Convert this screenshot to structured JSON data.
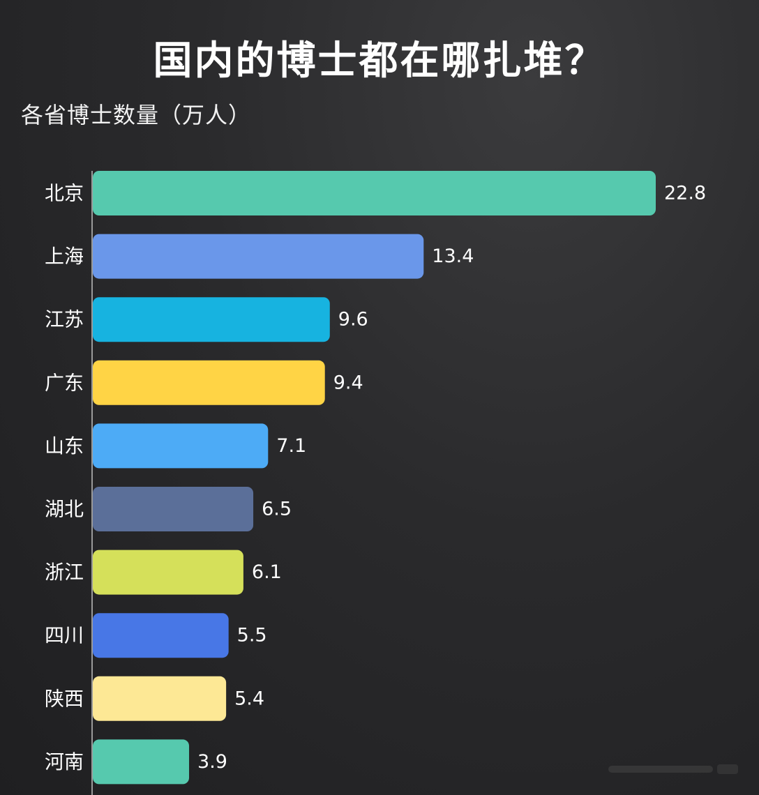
{
  "title": "国内的博士都在哪扎堆？",
  "subtitle": "各省博士数量（万人）",
  "chart_data": {
    "type": "bar",
    "orientation": "horizontal",
    "title": "国内的博士都在哪扎堆？",
    "subtitle": "各省博士数量（万人）",
    "categories": [
      "北京",
      "上海",
      "江苏",
      "广东",
      "山东",
      "湖北",
      "浙江",
      "四川",
      "陕西",
      "河南"
    ],
    "values": [
      22.8,
      13.4,
      9.6,
      9.4,
      7.1,
      6.5,
      6.1,
      5.5,
      5.4,
      3.9
    ],
    "value_labels": [
      "22.8",
      "13.4",
      "9.6",
      "9.4",
      "7.1",
      "6.5",
      "6.1",
      "5.5",
      "5.4",
      "3.9"
    ],
    "colors": [
      "#56c9ae",
      "#6a97ea",
      "#17b3e0",
      "#ffd445",
      "#4dabf6",
      "#5b6f99",
      "#d5e05a",
      "#4877e6",
      "#fde895",
      "#56c9ae"
    ],
    "xlim": [
      0,
      22.8
    ],
    "xlabel": "",
    "ylabel": "",
    "grid": false,
    "legend": "none"
  }
}
